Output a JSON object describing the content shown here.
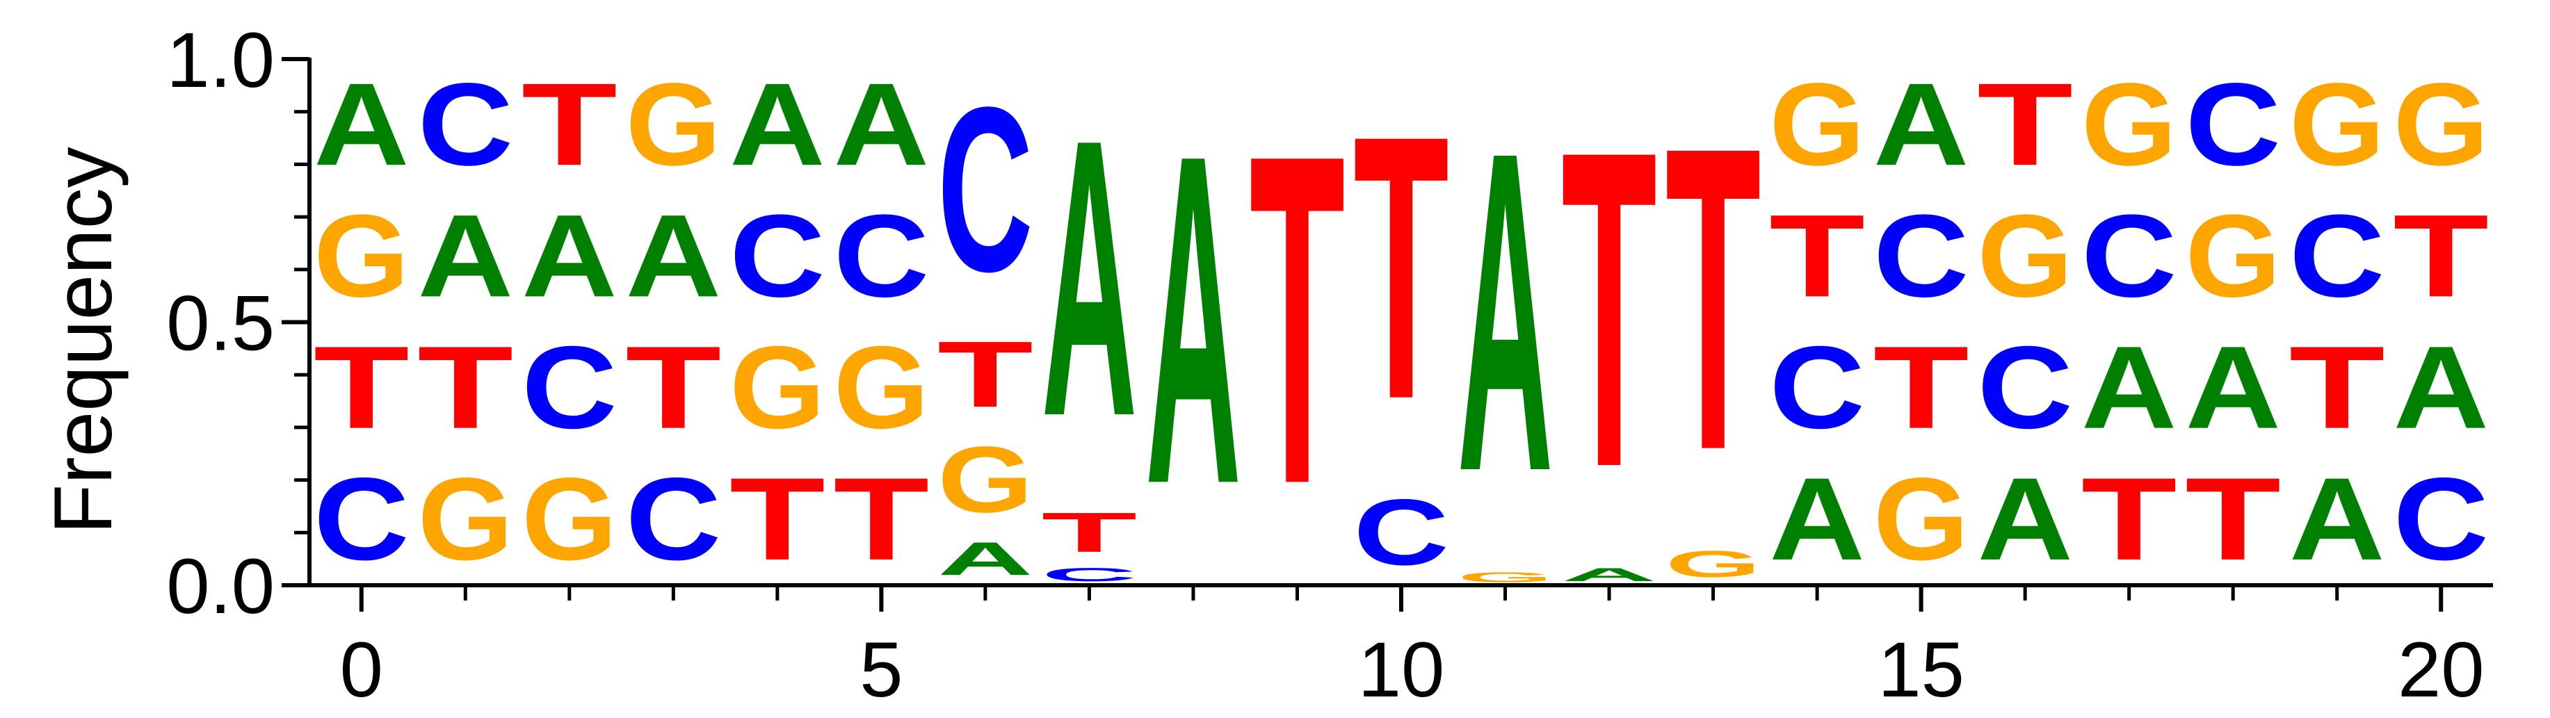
{
  "chart_data": {
    "type": "sequence-logo",
    "ylabel": "Frequency",
    "ylim": [
      0,
      1
    ],
    "yticks": [
      "0.0",
      "0.5",
      "1.0"
    ],
    "xlim": [
      -0.5,
      20.5
    ],
    "xticks": [
      "0",
      "5",
      "10",
      "15",
      "20"
    ],
    "colors": {
      "A": "#008000",
      "C": "#0000ff",
      "G": "#ffa500",
      "T": "#ff0000"
    },
    "positions": [
      {
        "x": 0,
        "stack": [
          [
            "C",
            0.25
          ],
          [
            "T",
            0.25
          ],
          [
            "G",
            0.25
          ],
          [
            "A",
            0.25
          ]
        ]
      },
      {
        "x": 1,
        "stack": [
          [
            "G",
            0.25
          ],
          [
            "T",
            0.25
          ],
          [
            "A",
            0.25
          ],
          [
            "C",
            0.25
          ]
        ]
      },
      {
        "x": 2,
        "stack": [
          [
            "G",
            0.25
          ],
          [
            "C",
            0.25
          ],
          [
            "A",
            0.25
          ],
          [
            "T",
            0.25
          ]
        ]
      },
      {
        "x": 3,
        "stack": [
          [
            "C",
            0.25
          ],
          [
            "T",
            0.25
          ],
          [
            "A",
            0.25
          ],
          [
            "G",
            0.25
          ]
        ]
      },
      {
        "x": 4,
        "stack": [
          [
            "T",
            0.25
          ],
          [
            "G",
            0.25
          ],
          [
            "C",
            0.25
          ],
          [
            "A",
            0.25
          ]
        ]
      },
      {
        "x": 5,
        "stack": [
          [
            "T",
            0.25
          ],
          [
            "G",
            0.25
          ],
          [
            "C",
            0.25
          ],
          [
            "A",
            0.25
          ]
        ]
      },
      {
        "x": 6,
        "stack": [
          [
            "A",
            0.1
          ],
          [
            "G",
            0.2
          ],
          [
            "T",
            0.2
          ],
          [
            "C",
            0.5
          ]
        ]
      },
      {
        "x": 7,
        "stack": [
          [
            "C",
            0.04
          ],
          [
            "T",
            0.12
          ],
          [
            "A",
            0.84
          ]
        ]
      },
      {
        "x": 8,
        "stack": [
          [
            "A",
            1.0
          ]
        ]
      },
      {
        "x": 9,
        "stack": [
          [
            "T",
            1.0
          ]
        ]
      },
      {
        "x": 10,
        "stack": [
          [
            "C",
            0.2
          ],
          [
            "T",
            0.8
          ]
        ]
      },
      {
        "x": 11,
        "stack": [
          [
            "G",
            0.03
          ],
          [
            "A",
            0.97
          ]
        ]
      },
      {
        "x": 12,
        "stack": [
          [
            "A",
            0.04
          ],
          [
            "T",
            0.96
          ]
        ]
      },
      {
        "x": 13,
        "stack": [
          [
            "G",
            0.08
          ],
          [
            "T",
            0.92
          ]
        ]
      },
      {
        "x": 14,
        "stack": [
          [
            "A",
            0.25
          ],
          [
            "C",
            0.25
          ],
          [
            "T",
            0.25
          ],
          [
            "G",
            0.25
          ]
        ]
      },
      {
        "x": 15,
        "stack": [
          [
            "G",
            0.25
          ],
          [
            "T",
            0.25
          ],
          [
            "C",
            0.25
          ],
          [
            "A",
            0.25
          ]
        ]
      },
      {
        "x": 16,
        "stack": [
          [
            "A",
            0.25
          ],
          [
            "C",
            0.25
          ],
          [
            "G",
            0.25
          ],
          [
            "T",
            0.25
          ]
        ]
      },
      {
        "x": 17,
        "stack": [
          [
            "T",
            0.25
          ],
          [
            "A",
            0.25
          ],
          [
            "C",
            0.25
          ],
          [
            "G",
            0.25
          ]
        ]
      },
      {
        "x": 18,
        "stack": [
          [
            "T",
            0.25
          ],
          [
            "A",
            0.25
          ],
          [
            "G",
            0.25
          ],
          [
            "C",
            0.25
          ]
        ]
      },
      {
        "x": 19,
        "stack": [
          [
            "A",
            0.25
          ],
          [
            "T",
            0.25
          ],
          [
            "C",
            0.25
          ],
          [
            "G",
            0.25
          ]
        ]
      },
      {
        "x": 20,
        "stack": [
          [
            "C",
            0.25
          ],
          [
            "A",
            0.25
          ],
          [
            "T",
            0.25
          ],
          [
            "G",
            0.25
          ]
        ]
      }
    ]
  }
}
